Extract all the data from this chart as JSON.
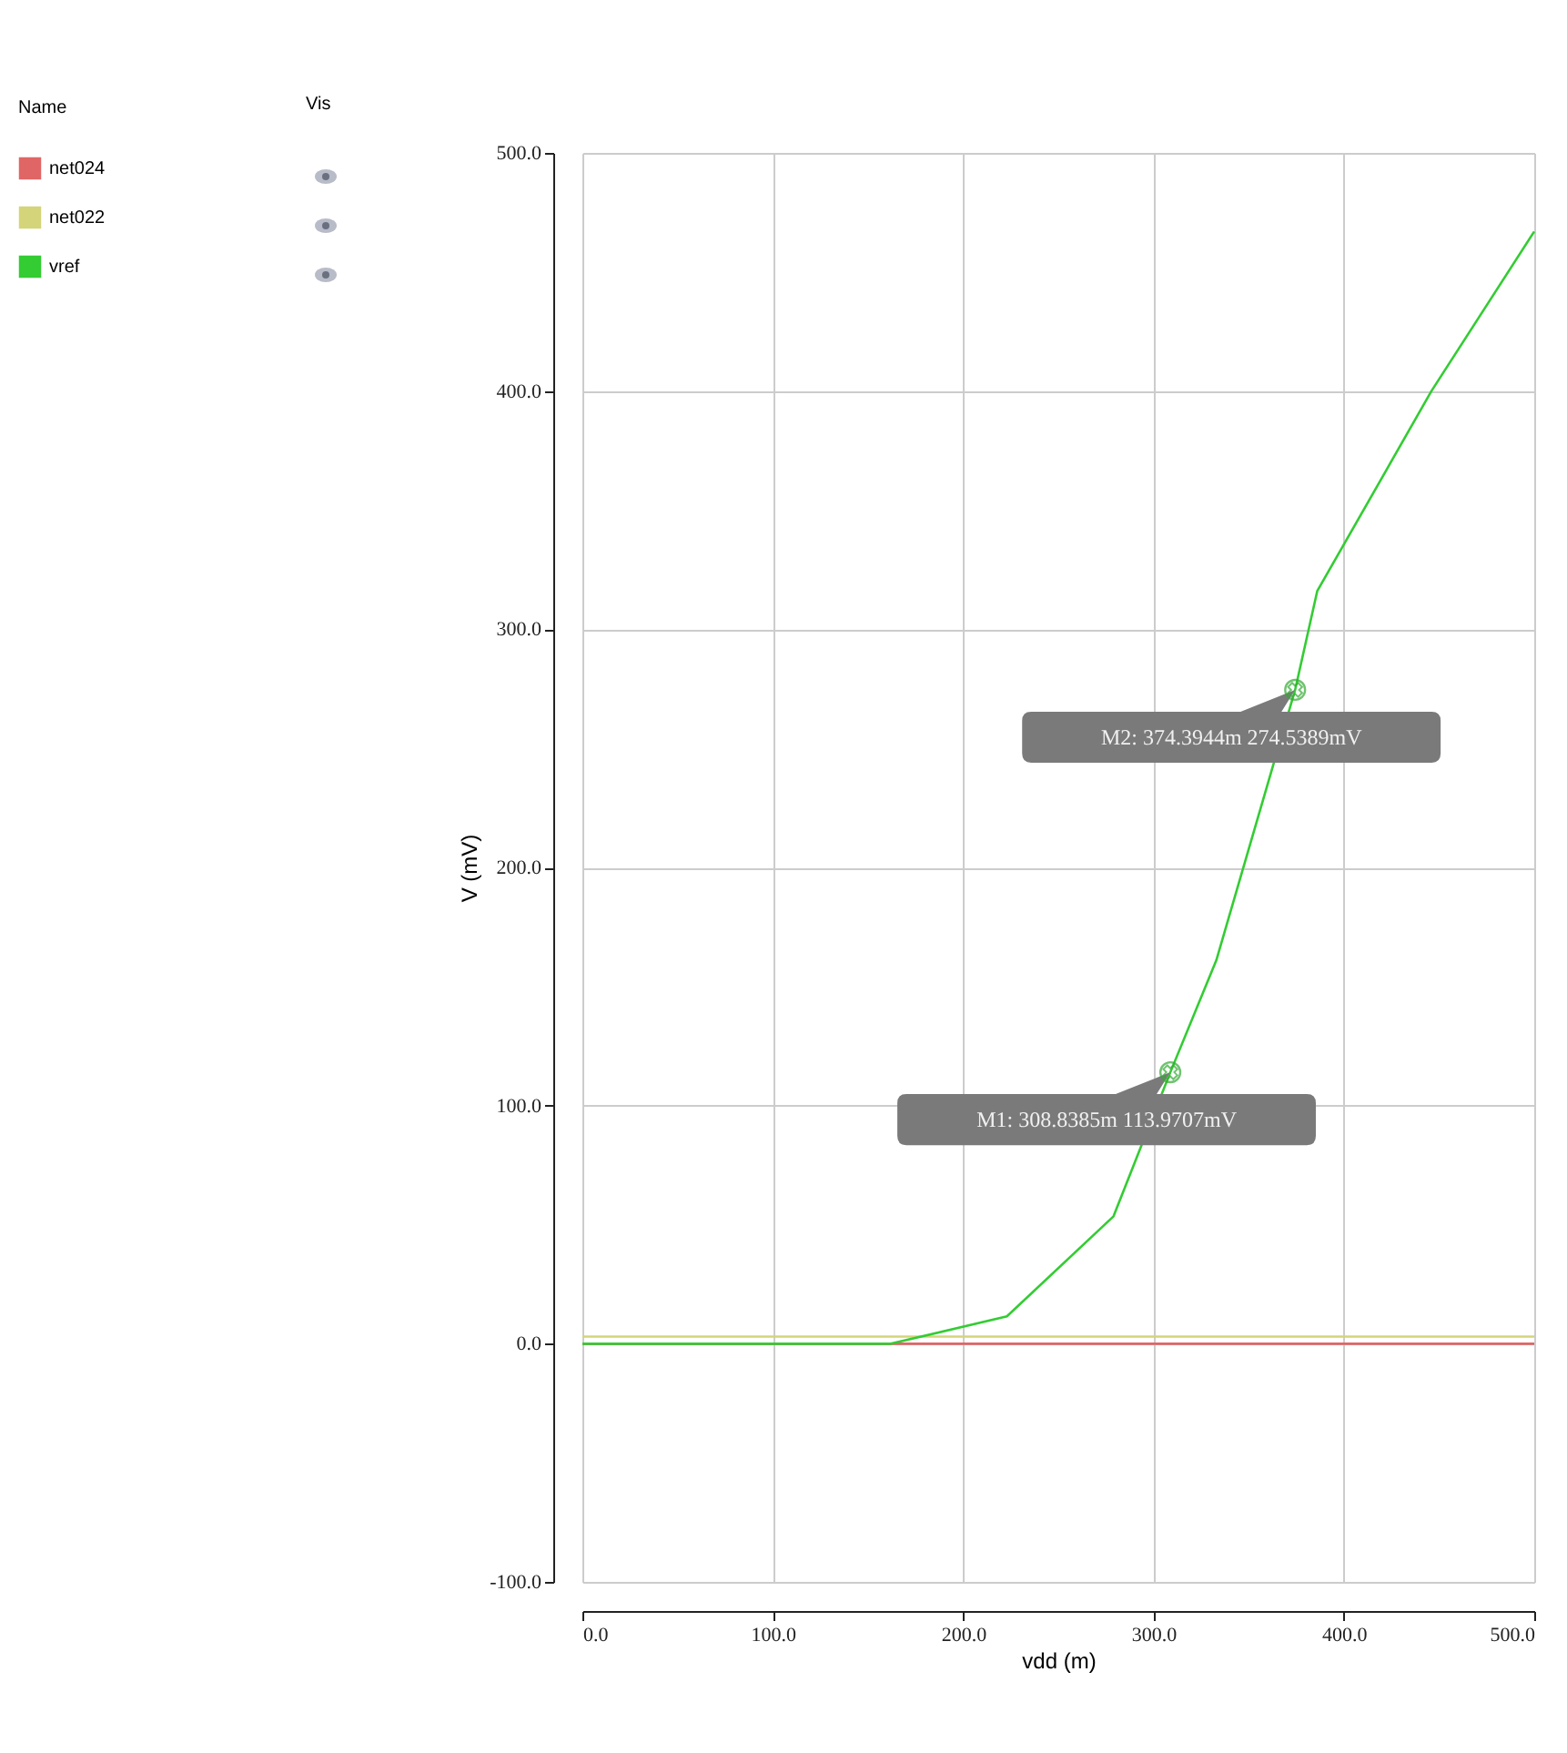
{
  "chart_data": {
    "type": "line",
    "xlabel": "vdd (m)",
    "ylabel": "V (mV)",
    "legend_title": "Name",
    "series": [
      {
        "name": "net024",
        "color": "#e06666",
        "x": [
          0,
          500
        ],
        "values": [
          0,
          0
        ]
      },
      {
        "name": "net022",
        "color": "#d4d47a",
        "x": [
          0,
          500
        ],
        "values": [
          3,
          3
        ]
      },
      {
        "name": "vref",
        "color": "#33cc33",
        "x": [
          0,
          162,
          223,
          279,
          308.8385,
          333,
          374.3944,
          386,
          446,
          500
        ],
        "values": [
          0,
          0,
          11.5,
          53.5,
          113.9707,
          161,
          274.5389,
          316,
          400,
          467
        ]
      }
    ],
    "annotations": [
      {
        "text": "M1: 308.8385m 113.9707mV",
        "x": 308.8385,
        "y": 113.9707
      },
      {
        "text": "M2: 374.3944m 274.5389mV",
        "x": 374.3944,
        "y": 274.5389
      },
      "Vis"
    ],
    "xlim": [
      0,
      500
    ],
    "ylim": [
      -100,
      500
    ],
    "xticks": [
      {
        "value": 0,
        "label": "0.0"
      },
      {
        "value": 100,
        "label": "100.0"
      },
      {
        "value": 200,
        "label": "200.0"
      },
      {
        "value": 300,
        "label": "300.0"
      },
      {
        "value": 400,
        "label": "400.0"
      },
      {
        "value": 500,
        "label": "500.0"
      }
    ],
    "yticks": [
      {
        "value": -100,
        "label": "-100.0"
      },
      {
        "value": 0,
        "label": "0.0"
      },
      {
        "value": 100,
        "label": "100.0"
      },
      {
        "value": 200,
        "label": "200.0"
      },
      {
        "value": 300,
        "label": "300.0"
      },
      {
        "value": 400,
        "label": "400.0"
      },
      {
        "value": 500,
        "label": "500.0"
      }
    ],
    "grid": true,
    "legend": "top left",
    "marker": "none",
    "line_style": "solid"
  }
}
